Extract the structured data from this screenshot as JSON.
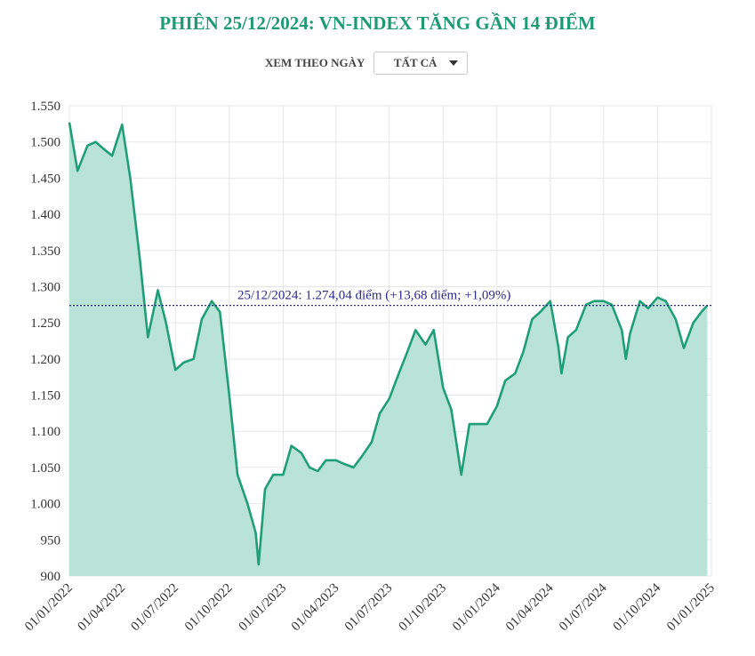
{
  "title": "PHIÊN 25/12/2024: VN-INDEX TĂNG GẦN 14 ĐIỂM",
  "filter": {
    "label": "XEM THEO NGÀY",
    "selected": "TẤT CẢ"
  },
  "colors": {
    "title": "#1f9a74",
    "line": "#1f9e78",
    "area": "#b9e3d6",
    "reference": "#2b2b8a"
  },
  "chart_data": {
    "type": "area",
    "ylim": [
      900,
      1550
    ],
    "xlim": [
      "2022-01-01",
      "2025-01-01"
    ],
    "grid": true,
    "y_ticks": [
      "900",
      "950",
      "1.000",
      "1.050",
      "1.100",
      "1.150",
      "1.200",
      "1.250",
      "1.300",
      "1.350",
      "1.400",
      "1.450",
      "1.500",
      "1.550"
    ],
    "x_ticks": [
      "01/01/2022",
      "01/04/2022",
      "01/07/2022",
      "01/10/2022",
      "01/01/2023",
      "01/04/2023",
      "01/07/2023",
      "01/10/2023",
      "01/01/2024",
      "01/04/2024",
      "01/07/2024",
      "01/10/2024",
      "01/01/2025"
    ],
    "reference_line": {
      "value": 1274.04,
      "label": "25/12/2024: 1.274,04 điểm (+13,68 điểm; +1,09%)"
    },
    "x": [
      "2022-01-01",
      "2022-01-15",
      "2022-02-01",
      "2022-02-15",
      "2022-03-01",
      "2022-03-15",
      "2022-04-01",
      "2022-04-15",
      "2022-05-01",
      "2022-05-15",
      "2022-06-01",
      "2022-06-15",
      "2022-07-01",
      "2022-07-15",
      "2022-08-01",
      "2022-08-15",
      "2022-09-01",
      "2022-09-15",
      "2022-10-01",
      "2022-10-15",
      "2022-11-01",
      "2022-11-15",
      "2022-11-20",
      "2022-12-01",
      "2022-12-15",
      "2023-01-01",
      "2023-01-15",
      "2023-02-01",
      "2023-02-15",
      "2023-03-01",
      "2023-03-15",
      "2023-04-01",
      "2023-04-15",
      "2023-05-01",
      "2023-05-15",
      "2023-06-01",
      "2023-06-15",
      "2023-07-01",
      "2023-07-15",
      "2023-08-01",
      "2023-08-15",
      "2023-09-01",
      "2023-09-15",
      "2023-10-01",
      "2023-10-15",
      "2023-11-01",
      "2023-11-15",
      "2023-12-01",
      "2023-12-15",
      "2024-01-01",
      "2024-01-15",
      "2024-02-01",
      "2024-02-15",
      "2024-03-01",
      "2024-03-15",
      "2024-04-01",
      "2024-04-15",
      "2024-04-20",
      "2024-05-01",
      "2024-05-15",
      "2024-06-01",
      "2024-06-15",
      "2024-07-01",
      "2024-07-15",
      "2024-08-01",
      "2024-08-08",
      "2024-08-15",
      "2024-09-01",
      "2024-09-15",
      "2024-10-01",
      "2024-10-15",
      "2024-11-01",
      "2024-11-15",
      "2024-12-01",
      "2024-12-15",
      "2024-12-25"
    ],
    "values": [
      1527,
      1460,
      1495,
      1500,
      1490,
      1481,
      1524,
      1450,
      1340,
      1230,
      1295,
      1250,
      1185,
      1195,
      1200,
      1255,
      1280,
      1265,
      1150,
      1040,
      1000,
      960,
      916,
      1020,
      1040,
      1040,
      1080,
      1070,
      1050,
      1045,
      1060,
      1060,
      1055,
      1050,
      1065,
      1085,
      1125,
      1145,
      1175,
      1210,
      1240,
      1220,
      1240,
      1160,
      1130,
      1040,
      1110,
      1110,
      1110,
      1135,
      1170,
      1180,
      1210,
      1255,
      1265,
      1280,
      1215,
      1180,
      1230,
      1240,
      1275,
      1280,
      1280,
      1275,
      1240,
      1200,
      1235,
      1280,
      1270,
      1285,
      1280,
      1255,
      1215,
      1250,
      1265,
      1274.04
    ]
  }
}
